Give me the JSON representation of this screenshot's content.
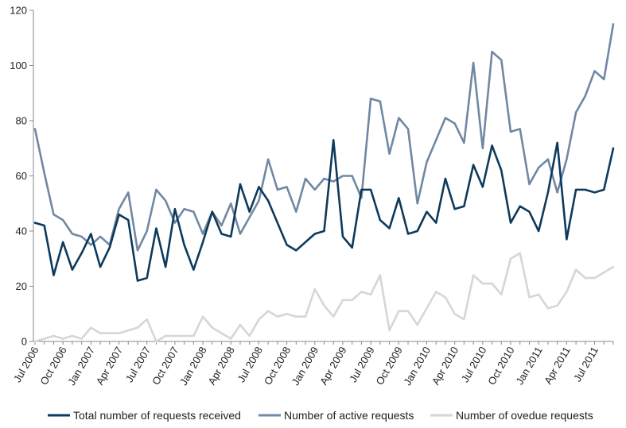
{
  "chart_data": {
    "type": "line",
    "title": "",
    "xlabel": "",
    "ylabel": "",
    "ylim": [
      0,
      120
    ],
    "yticks": [
      0,
      20,
      40,
      60,
      80,
      100,
      120
    ],
    "grid": false,
    "legend_position": "bottom",
    "x_tick_labels": [
      "Jul 2006",
      "Oct 2006",
      "Jan 2007",
      "Apr 2007",
      "Jul 2007",
      "Oct 2007",
      "Jan 2008",
      "Apr 2008",
      "Jul 2008",
      "Oct 2008",
      "Jan 2009",
      "Apr 2009",
      "Jul 2009",
      "Oct 2009",
      "Jan 2010",
      "Apr 2010",
      "Jul 2010",
      "Oct 2010",
      "Jan 2011",
      "Apr 2011",
      "Jul 2011"
    ],
    "series": [
      {
        "name": "Total number of requests received",
        "color": "#0d3a5c",
        "values": [
          43,
          42,
          24,
          36,
          26,
          32,
          39,
          27,
          34,
          46,
          44,
          22,
          23,
          41,
          27,
          48,
          35,
          26,
          36,
          47,
          39,
          38,
          57,
          47,
          56,
          51,
          43,
          35,
          33,
          36,
          39,
          40,
          73,
          38,
          34,
          55,
          55,
          44,
          41,
          52,
          39,
          40,
          47,
          43,
          59,
          48,
          49,
          64,
          56,
          71,
          62,
          43,
          49,
          47,
          40,
          54,
          72,
          37,
          55,
          55,
          54,
          55,
          70
        ]
      },
      {
        "name": "Number of active requests",
        "color": "#7088a3",
        "values": [
          77,
          61,
          46,
          44,
          39,
          38,
          35,
          38,
          35,
          48,
          54,
          33,
          40,
          55,
          51,
          43,
          48,
          47,
          39,
          47,
          42,
          50,
          39,
          45,
          51,
          66,
          55,
          56,
          47,
          59,
          55,
          59,
          58,
          60,
          60,
          52,
          88,
          87,
          68,
          81,
          77,
          50,
          65,
          73,
          81,
          79,
          72,
          101,
          70,
          105,
          102,
          76,
          77,
          57,
          63,
          66,
          54,
          66,
          83,
          89,
          98,
          95,
          115
        ]
      },
      {
        "name": "Number of ovedue requests",
        "color": "#d6d6d6",
        "values": [
          0,
          1,
          2,
          1,
          2,
          1,
          5,
          3,
          3,
          3,
          4,
          5,
          8,
          0,
          2,
          2,
          2,
          2,
          9,
          5,
          3,
          1,
          6,
          2,
          8,
          11,
          9,
          10,
          9,
          9,
          19,
          13,
          9,
          15,
          15,
          18,
          17,
          24,
          4,
          11,
          11,
          6,
          12,
          18,
          16,
          10,
          8,
          24,
          21,
          21,
          17,
          30,
          32,
          16,
          17,
          12,
          13,
          18,
          26,
          23,
          23,
          25,
          27
        ]
      }
    ]
  }
}
